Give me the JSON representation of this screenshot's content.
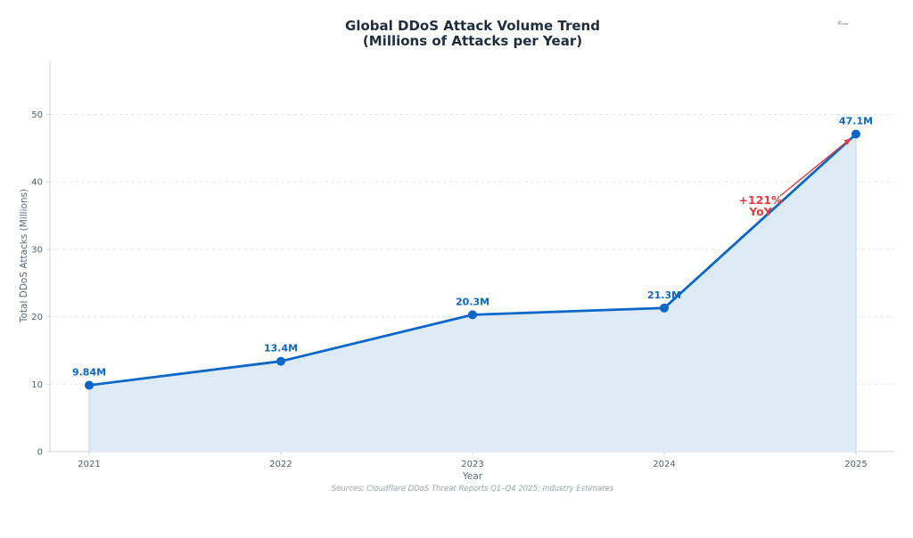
{
  "chart_data": {
    "type": "line",
    "title_line1": "Global DDoS Attack Volume Trend",
    "title_line2": "(Millions of Attacks per Year)",
    "xlabel": "Year",
    "ylabel": "Total DDoS Attacks (Millions)",
    "x": [
      "2021",
      "2022",
      "2023",
      "2024",
      "2025"
    ],
    "series": [
      {
        "values": [
          9.84,
          13.4,
          20.3,
          21.3,
          47.1
        ]
      }
    ],
    "data_labels": [
      "9.84M",
      "13.4M",
      "20.3M",
      "21.3M",
      "47.1M"
    ],
    "ylim": [
      0,
      58
    ],
    "yticks": [
      0,
      10,
      20,
      30,
      40,
      50
    ],
    "grid": true,
    "annotation": {
      "line1": "+121%",
      "line2": "YoY",
      "points_to": "2025"
    },
    "source": "Sources: Cloudflare DDoS Threat Reports Q1–Q4 2025; Industry Estimates",
    "corner_mark": "©ₙₜₑ",
    "colors": {
      "line": "#0a66c9",
      "fill": "#dfeaf7",
      "annotation": "#e63b3b",
      "grid": "#e3e8ee"
    }
  }
}
